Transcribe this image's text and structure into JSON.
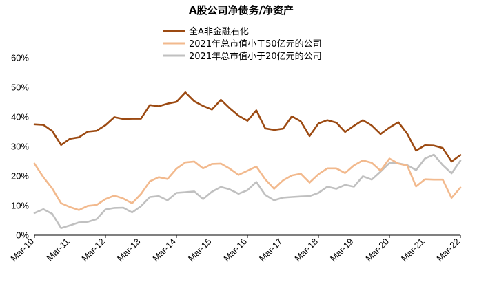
{
  "chart_data": {
    "type": "line",
    "title": "A股公司净债务/净资产",
    "xlabel": "",
    "ylabel": "",
    "ylim": [
      0,
      60
    ],
    "y_ticks": [
      "0%",
      "10%",
      "20%",
      "30%",
      "40%",
      "50%",
      "60%"
    ],
    "y_tick_values": [
      0,
      10,
      20,
      30,
      40,
      50,
      60
    ],
    "x_range": [
      0,
      48
    ],
    "x_tick_positions": [
      0,
      4,
      8,
      12,
      16,
      20,
      24,
      28,
      32,
      36,
      40,
      44,
      48
    ],
    "x_ticks": [
      "Mar-10",
      "Mar-11",
      "Mar-12",
      "Mar-13",
      "Mar-14",
      "Mar-15",
      "Mar-16",
      "Mar-17",
      "Mar-18",
      "Mar-19",
      "Mar-20",
      "Mar-21",
      "Mar-22"
    ],
    "grid": false,
    "legend_position": "top-center",
    "series": [
      {
        "name": "全A非金融石化",
        "color": "#9C4A12",
        "values": [
          37.5,
          37.3,
          35.2,
          30.5,
          32.6,
          33.1,
          35.0,
          35.3,
          37.2,
          39.9,
          39.3,
          39.4,
          39.4,
          44.0,
          43.6,
          44.5,
          45.1,
          48.3,
          45.3,
          43.7,
          42.5,
          45.8,
          42.9,
          40.4,
          38.7,
          42.2,
          36.1,
          35.6,
          36.0,
          40.2,
          38.5,
          33.5,
          37.8,
          38.9,
          38.1,
          34.9,
          37.0,
          38.9,
          37.1,
          34.2,
          36.4,
          38.2,
          34.3,
          28.6,
          30.4,
          30.3,
          29.5,
          24.9,
          27.1
        ]
      },
      {
        "name": "2021年总市值小于50亿元的公司",
        "color": "#F2B98D",
        "values": [
          24.2,
          19.6,
          15.8,
          10.8,
          9.5,
          8.5,
          9.9,
          10.2,
          12.2,
          13.4,
          12.4,
          10.8,
          13.9,
          18.2,
          19.6,
          19.0,
          22.5,
          24.6,
          24.9,
          22.6,
          24.1,
          24.2,
          22.5,
          20.4,
          21.8,
          23.2,
          18.9,
          15.7,
          18.5,
          20.2,
          20.8,
          17.8,
          20.6,
          22.6,
          22.6,
          21.0,
          23.6,
          25.3,
          24.5,
          21.8,
          25.9,
          24.2,
          23.5,
          16.5,
          18.9,
          18.8,
          18.8,
          12.6,
          16.1
        ]
      },
      {
        "name": "2021年总市值小于20亿元的公司",
        "color": "#C0C0C0",
        "values": [
          7.5,
          8.8,
          7.2,
          2.4,
          3.3,
          4.3,
          4.5,
          5.4,
          8.7,
          9.2,
          9.3,
          7.7,
          9.8,
          12.9,
          13.2,
          11.8,
          14.3,
          14.5,
          14.8,
          12.2,
          14.7,
          16.3,
          15.5,
          14.0,
          15.2,
          18.0,
          13.6,
          11.8,
          12.7,
          12.9,
          13.1,
          13.2,
          14.3,
          16.4,
          15.7,
          17.0,
          16.4,
          19.9,
          18.8,
          21.5,
          24.4,
          24.3,
          23.7,
          22.0,
          25.9,
          27.2,
          23.7,
          20.9,
          25.2
        ]
      }
    ]
  }
}
